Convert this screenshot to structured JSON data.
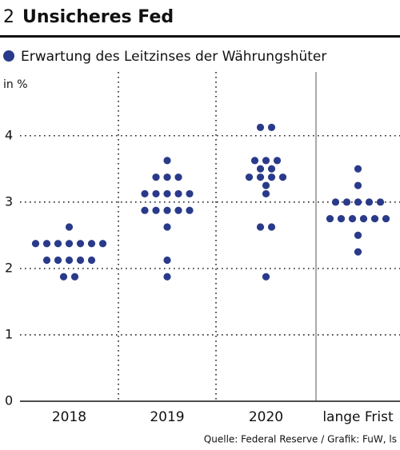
{
  "chart_data": {
    "type": "dot",
    "number": "2",
    "title": "Unsicheres Fed",
    "legend": "Erwartung des Leitzinses der Währungshüter",
    "y_label": "in %",
    "source": "Quelle: Federal Reserve / Grafik: FuW, ls",
    "categories": [
      "2018",
      "2019",
      "2020",
      "lange Frist"
    ],
    "series": [
      {
        "name": "Erwartung des Leitzinses der Währungshüter",
        "color": "#2a3a8a",
        "values": [
          [
            2.625,
            2.375,
            2.375,
            2.375,
            2.375,
            2.375,
            2.375,
            2.375,
            2.125,
            2.125,
            2.125,
            2.125,
            2.125,
            1.875,
            1.875
          ],
          [
            3.625,
            3.375,
            3.375,
            3.375,
            3.125,
            3.125,
            3.125,
            3.125,
            3.125,
            2.875,
            2.875,
            2.875,
            2.875,
            2.875,
            2.625,
            2.125,
            1.875
          ],
          [
            4.125,
            4.125,
            3.625,
            3.625,
            3.625,
            3.5,
            3.5,
            3.375,
            3.375,
            3.375,
            3.375,
            3.25,
            3.125,
            2.625,
            2.625,
            1.875
          ],
          [
            3.5,
            3.25,
            3.0,
            3.0,
            3.0,
            3.0,
            3.0,
            2.75,
            2.75,
            2.75,
            2.75,
            2.75,
            2.75,
            2.5,
            2.25
          ]
        ]
      }
    ],
    "ylim": [
      0,
      4.9
    ],
    "yticks": [
      0,
      1,
      2,
      3,
      4
    ],
    "grid": true
  }
}
